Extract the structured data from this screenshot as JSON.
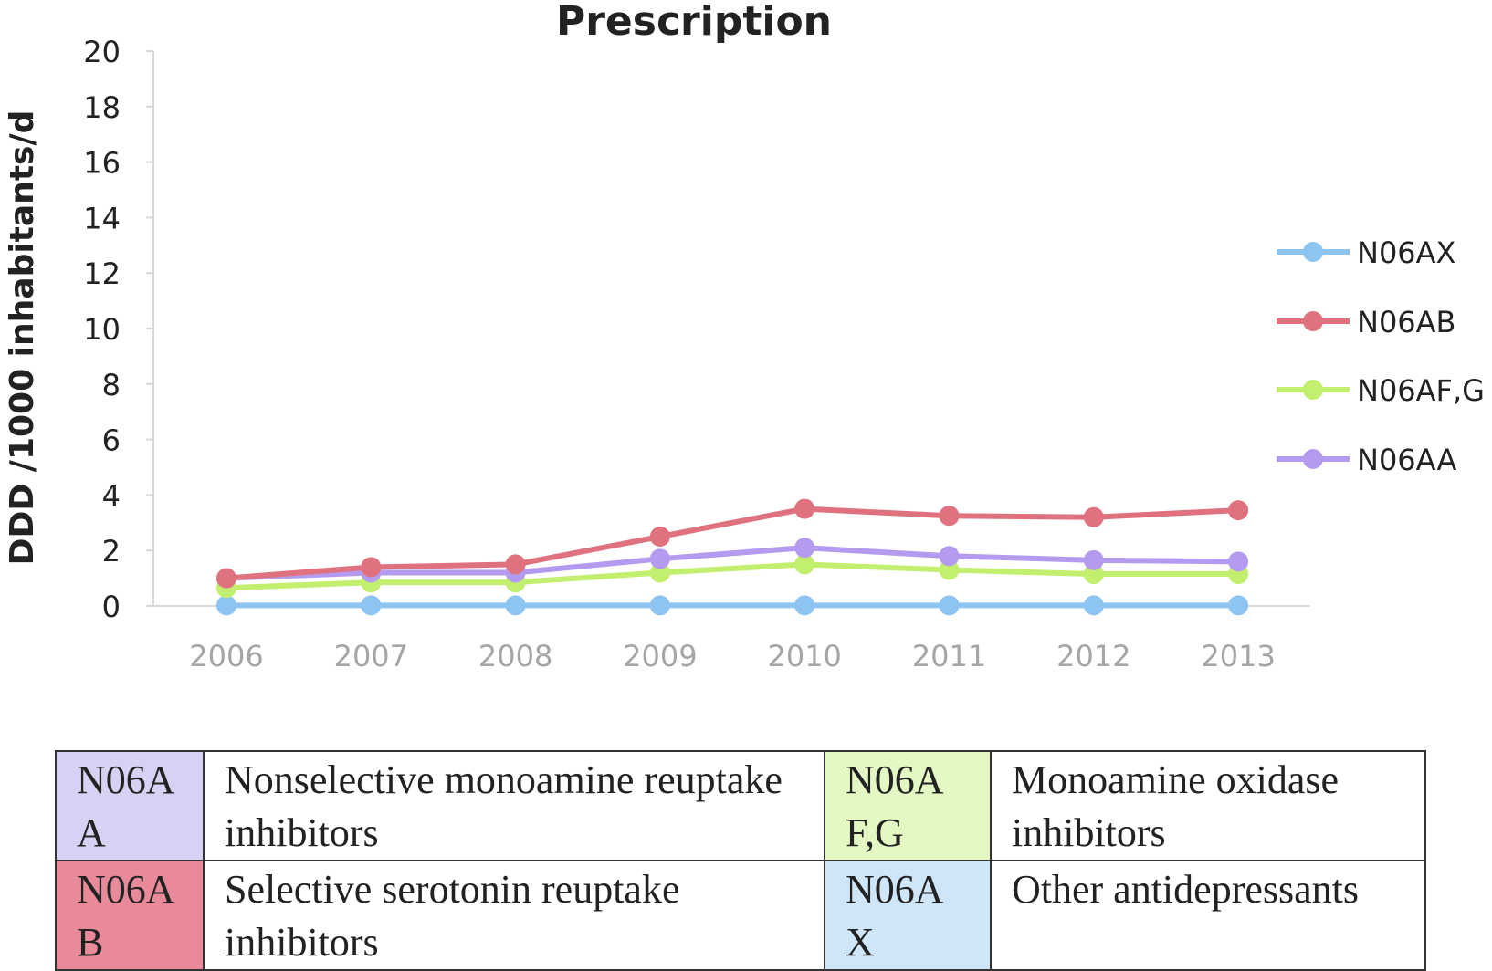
{
  "chart_data": {
    "type": "line",
    "title": "Prescription",
    "ylabel": "DDD /1000 inhabitants/d",
    "xlabel": "",
    "ylim": [
      0,
      20
    ],
    "yticks": [
      "0",
      "2",
      "4",
      "6",
      "8",
      "10",
      "12",
      "14",
      "16",
      "18",
      "20"
    ],
    "categories": [
      "2006",
      "2007",
      "2008",
      "2009",
      "2010",
      "2011",
      "2012",
      "2013"
    ],
    "grid": false,
    "legend_position": "right",
    "series": [
      {
        "name": "N06AX",
        "color": "#8ec4f2",
        "values": [
          0.02,
          0.02,
          0.02,
          0.02,
          0.02,
          0.02,
          0.02,
          0.02
        ]
      },
      {
        "name": "N06AB",
        "color": "#e0727f",
        "values": [
          1.0,
          1.4,
          1.5,
          2.5,
          3.5,
          3.25,
          3.2,
          3.45
        ]
      },
      {
        "name": "N06AF,G",
        "color": "#c2ef6e",
        "values": [
          0.65,
          0.85,
          0.85,
          1.2,
          1.5,
          1.3,
          1.15,
          1.15
        ]
      },
      {
        "name": "N06AA",
        "color": "#b49bef",
        "values": [
          1.0,
          1.2,
          1.2,
          1.7,
          2.1,
          1.8,
          1.65,
          1.6
        ]
      }
    ]
  },
  "legend_table": {
    "rows": [
      [
        {
          "code": "N06AA",
          "code_color": "#d9d1f4",
          "description": "Nonselective monoamine reuptake inhibitors"
        },
        {
          "code": "N06AF,G",
          "code_color": "#e4f8c4",
          "description": "Monoamine oxidase inhibitors"
        }
      ],
      [
        {
          "code": "N06AB",
          "code_color": "#e88a9a",
          "description": "Selective serotonin reuptake inhibitors"
        },
        {
          "code": "N06AX",
          "code_color": "#cfe5f8",
          "description": "Other antidepressants"
        }
      ]
    ]
  }
}
